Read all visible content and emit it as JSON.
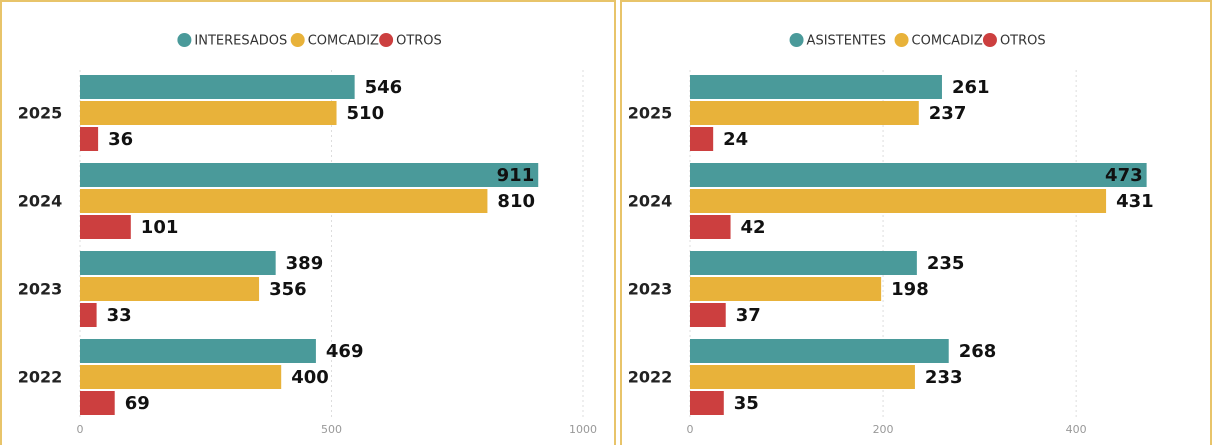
{
  "chart_data": [
    {
      "type": "hbar",
      "categories": [
        "2025",
        "2024",
        "2023",
        "2022"
      ],
      "series": [
        {
          "name": "INTERESADOS",
          "color": "#4a9a9a",
          "values": [
            546,
            911,
            389,
            469
          ]
        },
        {
          "name": "COMCADIZ",
          "color": "#e8b23a",
          "values": [
            510,
            810,
            356,
            400
          ]
        },
        {
          "name": "OTROS",
          "color": "#cc3f3f",
          "values": [
            36,
            101,
            33,
            69
          ]
        }
      ],
      "xlim": [
        0,
        1000
      ],
      "xticks": [
        0,
        500,
        1000
      ],
      "grid": true,
      "legend": "top"
    },
    {
      "type": "hbar",
      "categories": [
        "2025",
        "2024",
        "2023",
        "2022"
      ],
      "series": [
        {
          "name": "ASISTENTES",
          "color": "#4a9a9a",
          "values": [
            261,
            473,
            235,
            268
          ]
        },
        {
          "name": "COMCADIZ",
          "color": "#e8b23a",
          "values": [
            237,
            431,
            198,
            233
          ]
        },
        {
          "name": "OTROS",
          "color": "#cc3f3f",
          "values": [
            24,
            42,
            37,
            35
          ]
        }
      ],
      "xlim": [
        0,
        520
      ],
      "xticks": [
        0,
        200,
        400
      ],
      "grid": true,
      "legend": "top"
    }
  ]
}
